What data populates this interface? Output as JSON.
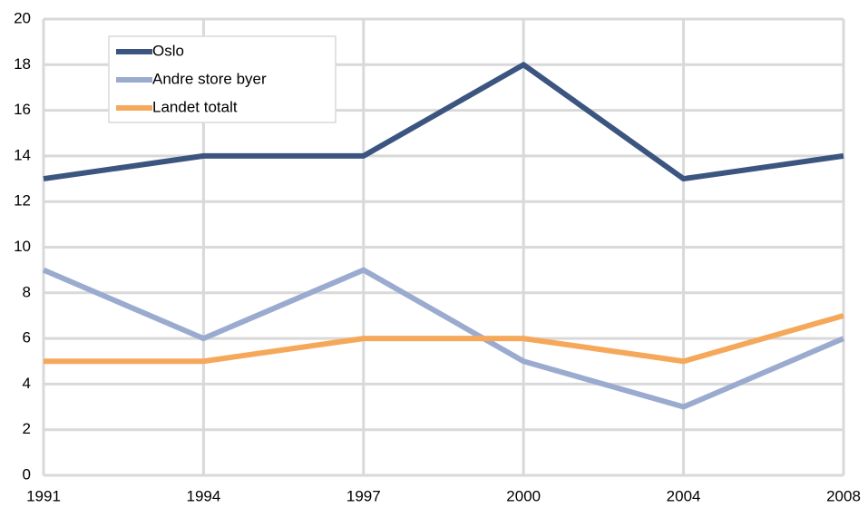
{
  "chart_data": {
    "type": "line",
    "categories": [
      "1991",
      "1994",
      "1997",
      "2000",
      "2004",
      "2008"
    ],
    "series": [
      {
        "name": "Oslo",
        "color": "#3b5580",
        "values": [
          13,
          14,
          14,
          18,
          13,
          14
        ]
      },
      {
        "name": "Andre store byer",
        "color": "#9aabcf",
        "values": [
          9,
          6,
          9,
          5,
          3,
          6
        ]
      },
      {
        "name": "Landet totalt",
        "color": "#f6a85a",
        "values": [
          5,
          5,
          6,
          6,
          5,
          7
        ]
      }
    ],
    "ylim": [
      0,
      20
    ],
    "yticks": [
      0,
      2,
      4,
      6,
      8,
      10,
      12,
      14,
      16,
      18,
      20
    ],
    "grid": true,
    "legend": "top-left"
  }
}
